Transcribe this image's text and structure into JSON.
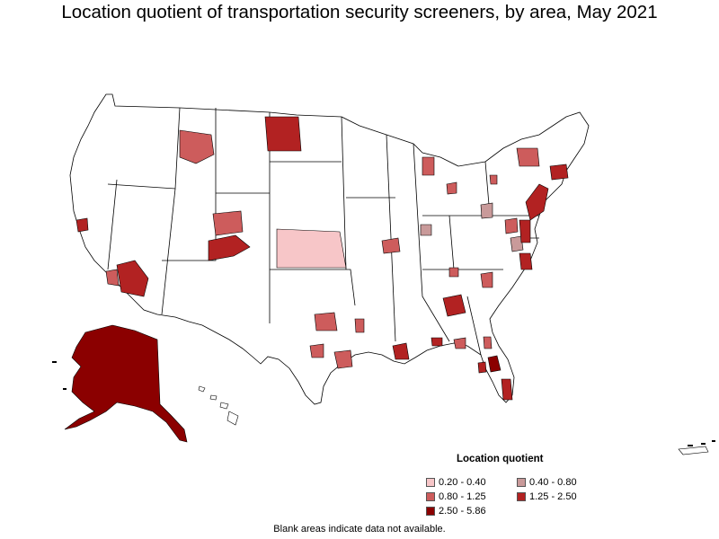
{
  "title": "Location quotient of transportation security screeners, by area, May 2021",
  "legend": {
    "title": "Location quotient",
    "items": [
      {
        "label": "0.20 - 0.40",
        "color": "#f7c6c8"
      },
      {
        "label": "0.40 - 0.80",
        "color": "#c99a9a"
      },
      {
        "label": "0.80 - 1.25",
        "color": "#cd5c5c"
      },
      {
        "label": "1.25 - 2.50",
        "color": "#b22222"
      },
      {
        "label": "2.50 - 5.86",
        "color": "#8b0000"
      }
    ]
  },
  "footnote": "Blank areas indicate data not available."
}
